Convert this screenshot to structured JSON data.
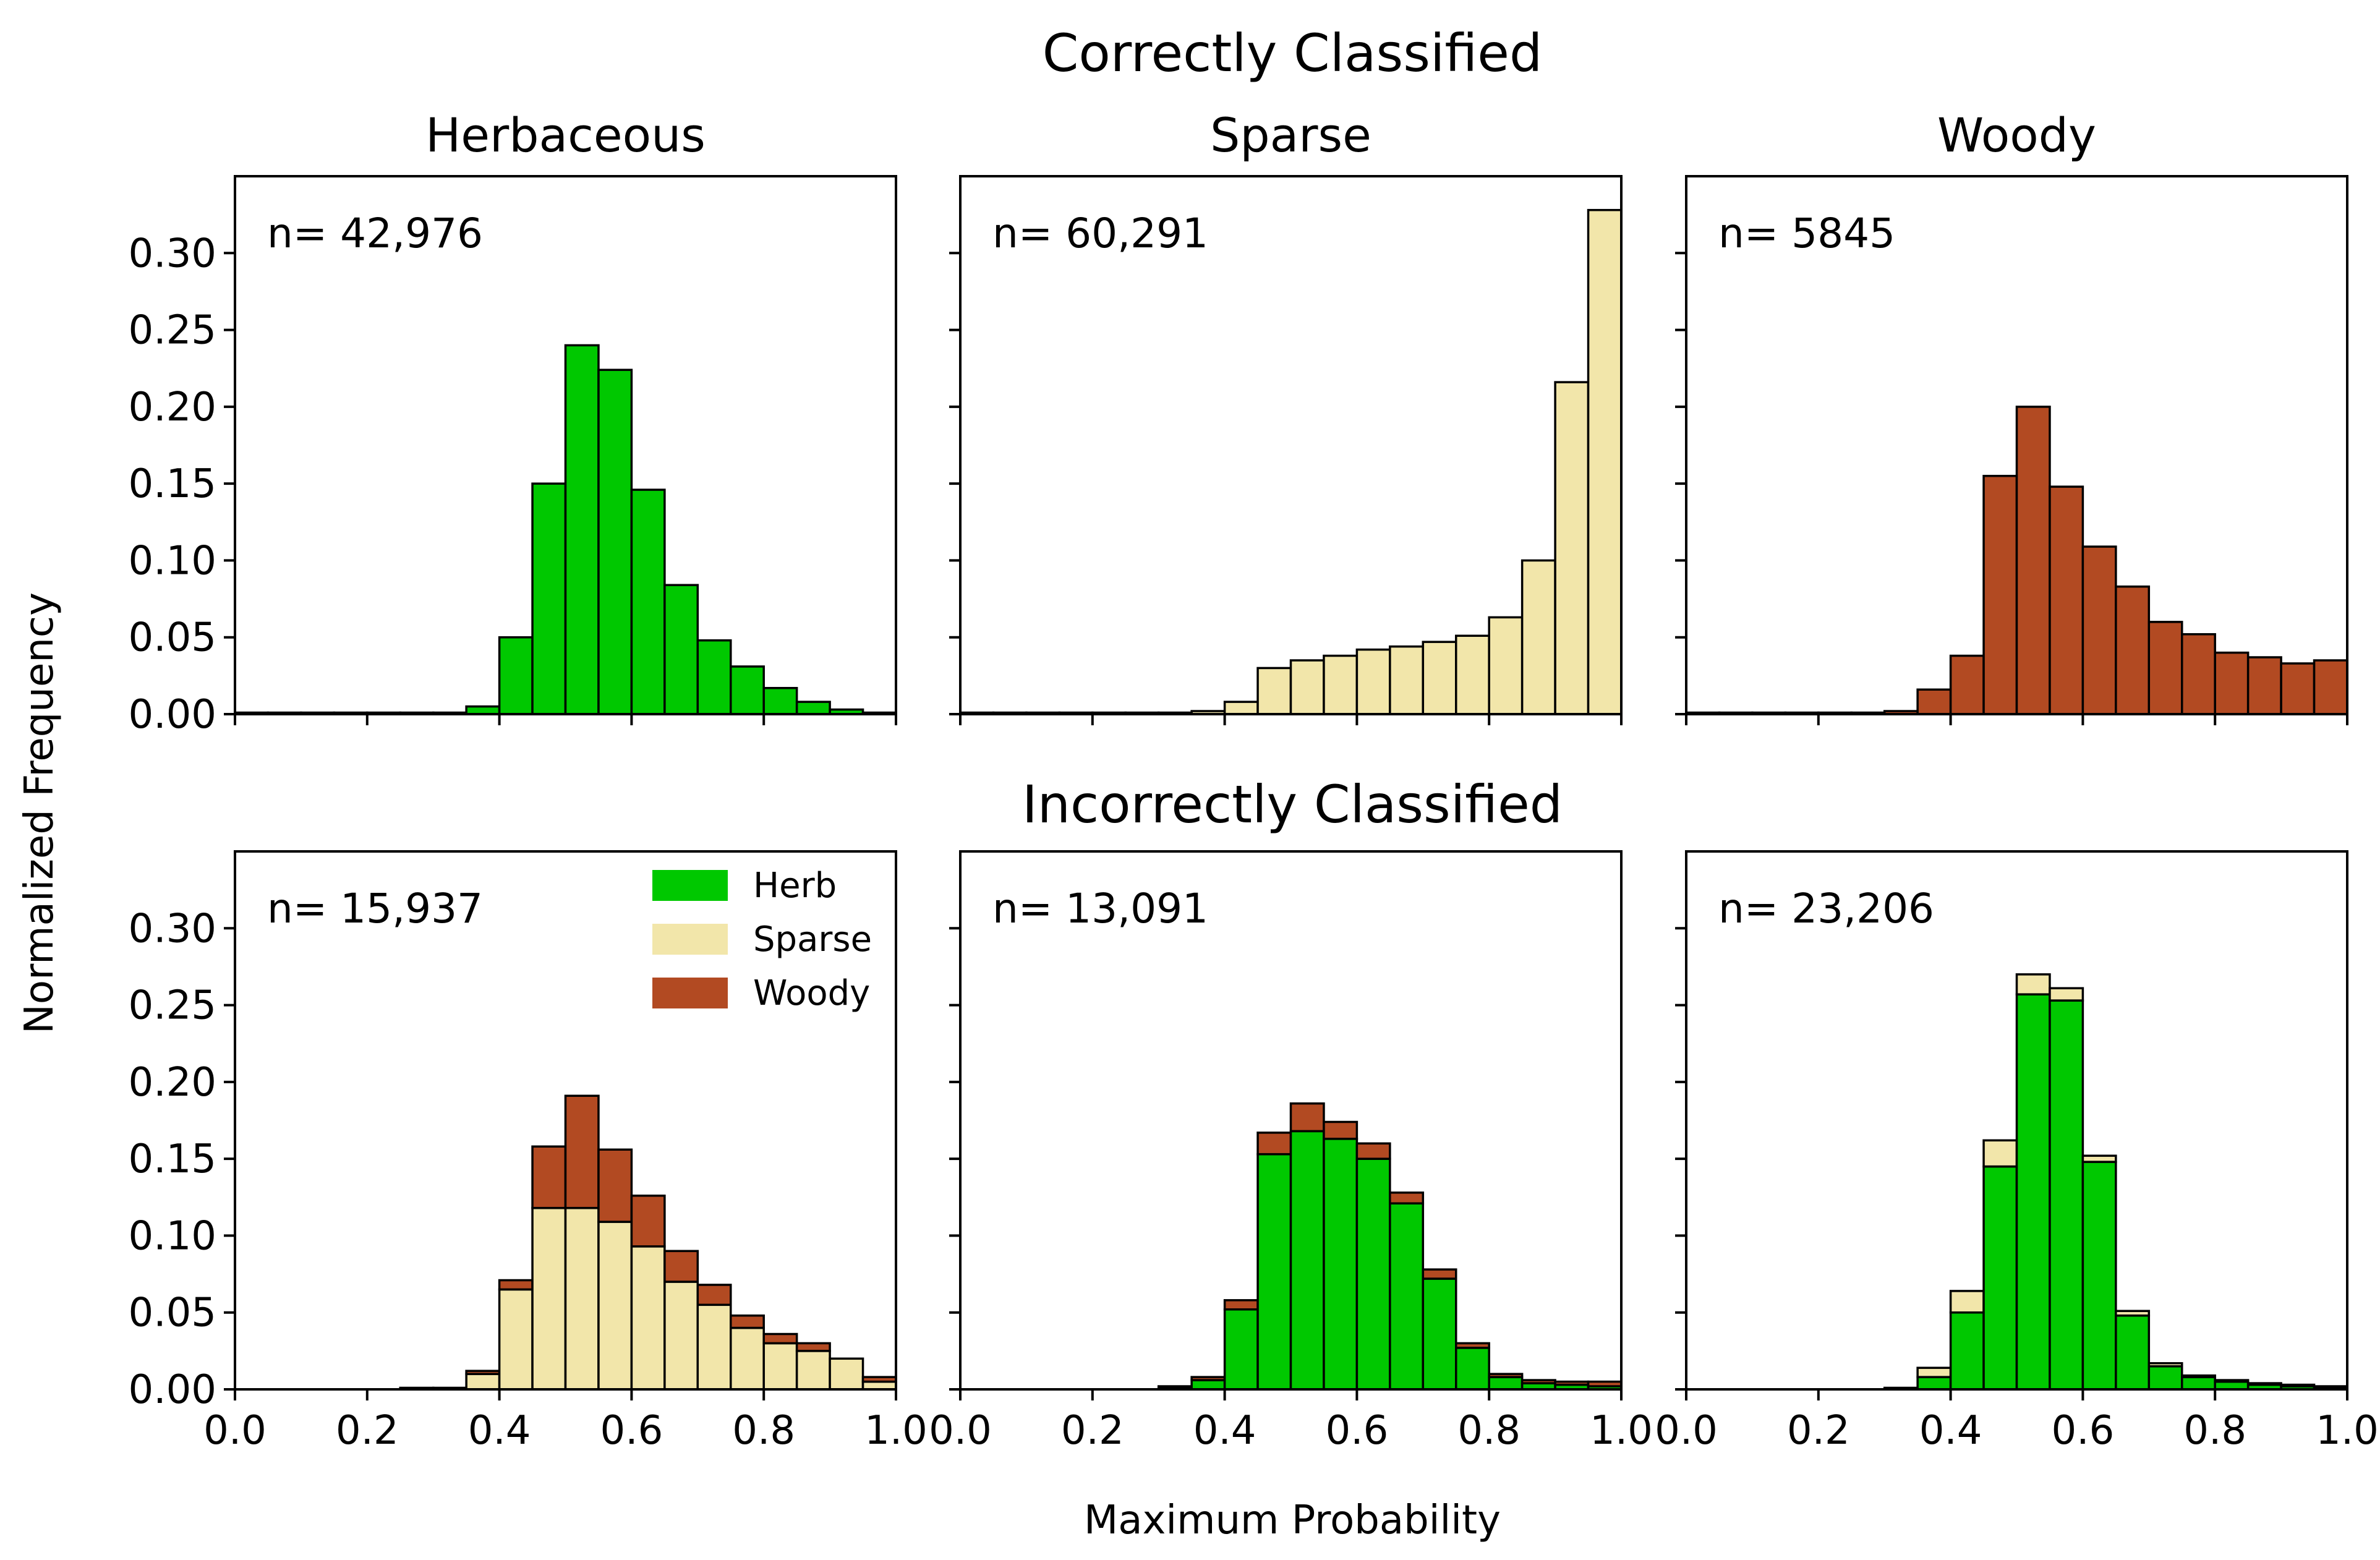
{
  "colors": {
    "herb": "#00c800",
    "sparse": "#f2e6aa",
    "woody": "#b24a22",
    "edge": "#000000"
  },
  "rows": [
    {
      "title": "Correctly Classified"
    },
    {
      "title": "Incorrectly Classified"
    }
  ],
  "axes": {
    "xlabel": "Maximum Probability",
    "ylabel": "Normalized Frequency"
  },
  "legend": {
    "location": "top-right of lower-left panel",
    "items": [
      {
        "label": "Herb",
        "color_key": "herb"
      },
      {
        "label": "Sparse",
        "color_key": "sparse"
      },
      {
        "label": "Woody",
        "color_key": "woody"
      }
    ]
  },
  "chart_data": [
    {
      "type": "bar",
      "stacked": true,
      "row": 0,
      "col": 0,
      "title": "Herbaceous",
      "n_label": "n= 42,976",
      "xlim": [
        0.0,
        1.0
      ],
      "ylim": [
        0.0,
        0.35
      ],
      "xticks": [
        "0.0",
        "0.2",
        "0.4",
        "0.6",
        "0.8",
        "1.0"
      ],
      "yticks": [
        "0.00",
        "0.05",
        "0.10",
        "0.15",
        "0.20",
        "0.25",
        "0.30"
      ],
      "bin_start": 0.0,
      "bin_width": 0.05,
      "series": [
        {
          "name": "Herb",
          "color_key": "herb",
          "values": [
            0.001,
            0.001,
            0.001,
            0.001,
            0.001,
            0.001,
            0.001,
            0.005,
            0.05,
            0.15,
            0.24,
            0.224,
            0.146,
            0.084,
            0.048,
            0.031,
            0.017,
            0.008,
            0.003,
            0.001
          ]
        }
      ]
    },
    {
      "type": "bar",
      "stacked": true,
      "row": 0,
      "col": 1,
      "title": "Sparse",
      "n_label": "n= 60,291",
      "xlim": [
        0.0,
        1.0
      ],
      "ylim": [
        0.0,
        0.35
      ],
      "xticks": [
        "0.0",
        "0.2",
        "0.4",
        "0.6",
        "0.8",
        "1.0"
      ],
      "yticks": [
        "0.00",
        "0.05",
        "0.10",
        "0.15",
        "0.20",
        "0.25",
        "0.30"
      ],
      "bin_start": 0.0,
      "bin_width": 0.05,
      "series": [
        {
          "name": "Sparse",
          "color_key": "sparse",
          "values": [
            0.001,
            0.001,
            0.001,
            0.001,
            0.001,
            0.001,
            0.001,
            0.002,
            0.008,
            0.03,
            0.035,
            0.038,
            0.042,
            0.044,
            0.047,
            0.051,
            0.063,
            0.1,
            0.216,
            0.328
          ]
        }
      ]
    },
    {
      "type": "bar",
      "stacked": true,
      "row": 0,
      "col": 2,
      "title": "Woody",
      "n_label": "n= 5845",
      "xlim": [
        0.0,
        1.0
      ],
      "ylim": [
        0.0,
        0.35
      ],
      "xticks": [
        "0.0",
        "0.2",
        "0.4",
        "0.6",
        "0.8",
        "1.0"
      ],
      "yticks": [
        "0.00",
        "0.05",
        "0.10",
        "0.15",
        "0.20",
        "0.25",
        "0.30"
      ],
      "bin_start": 0.0,
      "bin_width": 0.05,
      "series": [
        {
          "name": "Woody",
          "color_key": "woody",
          "values": [
            0.001,
            0.001,
            0.001,
            0.001,
            0.001,
            0.001,
            0.002,
            0.016,
            0.038,
            0.155,
            0.2,
            0.148,
            0.109,
            0.083,
            0.06,
            0.052,
            0.04,
            0.037,
            0.033,
            0.035
          ]
        }
      ]
    },
    {
      "type": "bar",
      "stacked": true,
      "row": 1,
      "col": 0,
      "title": "",
      "n_label": "n= 15,937",
      "xlim": [
        0.0,
        1.0
      ],
      "ylim": [
        0.0,
        0.35
      ],
      "xticks": [
        "0.0",
        "0.2",
        "0.4",
        "0.6",
        "0.8",
        "1.0"
      ],
      "yticks": [
        "0.00",
        "0.05",
        "0.10",
        "0.15",
        "0.20",
        "0.25",
        "0.30"
      ],
      "bin_start": 0.0,
      "bin_width": 0.05,
      "series": [
        {
          "name": "Sparse",
          "color_key": "sparse",
          "values": [
            0.0,
            0.0,
            0.0,
            0.0,
            0.0,
            0.0,
            0.0,
            0.01,
            0.065,
            0.118,
            0.118,
            0.109,
            0.093,
            0.07,
            0.055,
            0.04,
            0.03,
            0.025,
            0.02,
            0.005
          ]
        },
        {
          "name": "Woody",
          "color_key": "woody",
          "values": [
            0.0,
            0.0,
            0.0,
            0.0,
            0.0,
            0.001,
            0.001,
            0.002,
            0.006,
            0.04,
            0.073,
            0.047,
            0.033,
            0.02,
            0.013,
            0.008,
            0.006,
            0.005,
            0.0,
            0.003
          ]
        }
      ]
    },
    {
      "type": "bar",
      "stacked": true,
      "row": 1,
      "col": 1,
      "title": "",
      "n_label": "n= 13,091",
      "xlim": [
        0.0,
        1.0
      ],
      "ylim": [
        0.0,
        0.35
      ],
      "xticks": [
        "0.0",
        "0.2",
        "0.4",
        "0.6",
        "0.8",
        "1.0"
      ],
      "yticks": [
        "0.00",
        "0.05",
        "0.10",
        "0.15",
        "0.20",
        "0.25",
        "0.30"
      ],
      "bin_start": 0.0,
      "bin_width": 0.05,
      "series": [
        {
          "name": "Herb",
          "color_key": "herb",
          "values": [
            0.0,
            0.0,
            0.0,
            0.0,
            0.0,
            0.0,
            0.001,
            0.006,
            0.052,
            0.153,
            0.168,
            0.163,
            0.15,
            0.121,
            0.072,
            0.027,
            0.008,
            0.004,
            0.003,
            0.002
          ]
        },
        {
          "name": "Woody",
          "color_key": "woody",
          "values": [
            0.0,
            0.0,
            0.0,
            0.0,
            0.0,
            0.0,
            0.001,
            0.002,
            0.006,
            0.014,
            0.018,
            0.011,
            0.01,
            0.007,
            0.006,
            0.003,
            0.002,
            0.002,
            0.002,
            0.003
          ]
        }
      ]
    },
    {
      "type": "bar",
      "stacked": true,
      "row": 1,
      "col": 2,
      "title": "",
      "n_label": "n= 23,206",
      "xlim": [
        0.0,
        1.0
      ],
      "ylim": [
        0.0,
        0.35
      ],
      "xticks": [
        "0.0",
        "0.2",
        "0.4",
        "0.6",
        "0.8",
        "1.0"
      ],
      "yticks": [
        "0.00",
        "0.05",
        "0.10",
        "0.15",
        "0.20",
        "0.25",
        "0.30"
      ],
      "bin_start": 0.0,
      "bin_width": 0.05,
      "series": [
        {
          "name": "Herb",
          "color_key": "herb",
          "values": [
            0.0,
            0.0,
            0.0,
            0.0,
            0.0,
            0.0,
            0.0,
            0.008,
            0.05,
            0.145,
            0.257,
            0.253,
            0.148,
            0.048,
            0.015,
            0.008,
            0.005,
            0.003,
            0.002,
            0.001
          ]
        },
        {
          "name": "Sparse",
          "color_key": "sparse",
          "values": [
            0.0,
            0.0,
            0.0,
            0.0,
            0.0,
            0.0,
            0.001,
            0.006,
            0.014,
            0.017,
            0.013,
            0.008,
            0.004,
            0.003,
            0.002,
            0.001,
            0.001,
            0.001,
            0.001,
            0.001
          ]
        }
      ]
    }
  ]
}
